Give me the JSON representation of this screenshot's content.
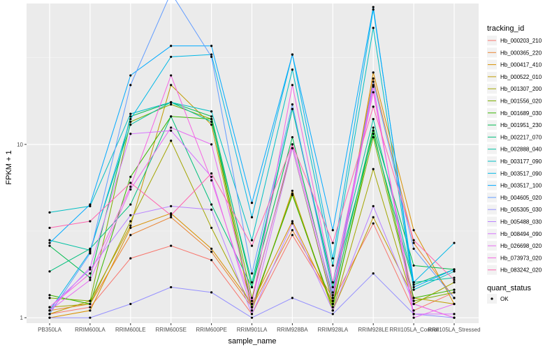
{
  "chart_data": {
    "type": "line",
    "xlabel": "sample_name",
    "ylabel": "FPKM + 1",
    "y_scale": "log10",
    "ylim": [
      0.93,
      65
    ],
    "y_ticks": [
      1,
      10
    ],
    "y_tick_labels": [
      "1",
      "10"
    ],
    "grid": true,
    "legend_position": "right",
    "categories": [
      "PB350LA",
      "RRIM600LA",
      "RRIM600LE",
      "RRIM600SE",
      "RRIM600PE",
      "RRIM901LA",
      "RRIM928BA",
      "RRIM928LA",
      "RRIM928LE",
      "RRII105LA_Control",
      "RRII105LA_Stressed"
    ],
    "legend_title": "tracking_id",
    "shape_legend_title": "quant_status",
    "shape_legend_label": "OK",
    "series": [
      {
        "name": "Hb_000203_210",
        "color": "#F8766D",
        "values": [
          1.05,
          1.15,
          2.2,
          2.6,
          2.15,
          1.05,
          3.0,
          1.25,
          3.5,
          1.1,
          1.4
        ]
      },
      {
        "name": "Hb_000365_220",
        "color": "#EA8331",
        "values": [
          1.1,
          1.2,
          3.0,
          3.8,
          2.4,
          1.15,
          3.2,
          1.3,
          24,
          2.7,
          1.3
        ]
      },
      {
        "name": "Hb_000417_410",
        "color": "#D89000",
        "values": [
          1.0,
          1.1,
          3.3,
          4.0,
          2.5,
          1.2,
          3.6,
          1.2,
          26,
          3.2,
          1.2
        ]
      },
      {
        "name": "Hb_000522_010",
        "color": "#C09B00",
        "values": [
          1.05,
          1.25,
          3.4,
          22,
          13,
          1.1,
          5.4,
          1.1,
          3.8,
          1.3,
          1.2
        ]
      },
      {
        "name": "Hb_001307_200",
        "color": "#A3A500",
        "values": [
          1.15,
          1.2,
          3.6,
          10.5,
          3.3,
          1.15,
          5.2,
          1.1,
          7.2,
          1.2,
          1.6
        ]
      },
      {
        "name": "Hb_001556_020",
        "color": "#7CAE00",
        "values": [
          1.3,
          1.25,
          13.5,
          17,
          14,
          1.3,
          9.5,
          1.2,
          11,
          1.25,
          1.4
        ]
      },
      {
        "name": "Hb_001689_030",
        "color": "#39B600",
        "values": [
          1.35,
          1.2,
          6.5,
          14.5,
          14,
          1.15,
          5.1,
          1.15,
          12,
          1.3,
          1.45
        ]
      },
      {
        "name": "Hb_001951_230",
        "color": "#00BB4E",
        "values": [
          2.6,
          1.7,
          14.5,
          17.5,
          14.5,
          1.5,
          11,
          1.3,
          12.5,
          2.0,
          1.9
        ]
      },
      {
        "name": "Hb_002217_070",
        "color": "#00BF7D",
        "values": [
          1.85,
          2.5,
          4.5,
          14.5,
          4.5,
          1.5,
          16,
          1.5,
          11.5,
          1.55,
          1.9
        ]
      },
      {
        "name": "Hb_002888_040",
        "color": "#00C1A3",
        "values": [
          2.8,
          2.45,
          13,
          17.5,
          13.5,
          1.6,
          16,
          1.6,
          14,
          1.6,
          1.7
        ]
      },
      {
        "name": "Hb_003177_090",
        "color": "#00BFC4",
        "values": [
          4.05,
          4.4,
          15,
          17.5,
          15.5,
          2.8,
          27,
          2.0,
          47,
          1.45,
          1.85
        ]
      },
      {
        "name": "Hb_003517_090",
        "color": "#00B8E7",
        "values": [
          1.1,
          2.4,
          14,
          32,
          33,
          3.8,
          33,
          2.2,
          60,
          1.6,
          2.7
        ]
      },
      {
        "name": "Hb_003517_100",
        "color": "#00A9FF",
        "values": [
          2.7,
          4.5,
          25,
          37,
          37,
          4.6,
          33,
          3.2,
          62,
          1.5,
          1.9
        ]
      },
      {
        "name": "Hb_004605_020",
        "color": "#619CFF",
        "values": [
          1.05,
          2.35,
          22,
          75,
          32,
          1.8,
          17,
          1.4,
          23,
          2.5,
          1.3
        ]
      },
      {
        "name": "Hb_005305_030",
        "color": "#9590FF",
        "values": [
          1.0,
          1.0,
          1.2,
          1.5,
          1.4,
          1.0,
          1.3,
          1.05,
          1.8,
          1.05,
          1.0
        ]
      },
      {
        "name": "Hb_005488_030",
        "color": "#B983FF",
        "values": [
          1.15,
          1.9,
          3.9,
          4.4,
          4.2,
          1.05,
          3.5,
          1.1,
          4.4,
          1.2,
          1.0
        ]
      },
      {
        "name": "Hb_008494_090",
        "color": "#D575FE",
        "values": [
          1.1,
          1.95,
          11.5,
          12,
          6.5,
          1.1,
          9.5,
          1.25,
          21.5,
          1.05,
          1.05
        ]
      },
      {
        "name": "Hb_026698_020",
        "color": "#E76BF3",
        "values": [
          1.1,
          1.65,
          5.5,
          12.5,
          10,
          1.25,
          10,
          1.35,
          22,
          1.0,
          1.2
        ]
      },
      {
        "name": "Hb_073973_020",
        "color": "#F564E3",
        "values": [
          1.15,
          1.8,
          5.7,
          25,
          6.2,
          1.2,
          22,
          1.6,
          20,
          1.2,
          1.0
        ]
      },
      {
        "name": "Hb_083242_020",
        "color": "#FF64B0",
        "values": [
          3.3,
          3.6,
          6.0,
          3.9,
          6.8,
          2.6,
          10,
          2.7,
          16.5,
          2.8,
          1.65
        ]
      }
    ]
  }
}
